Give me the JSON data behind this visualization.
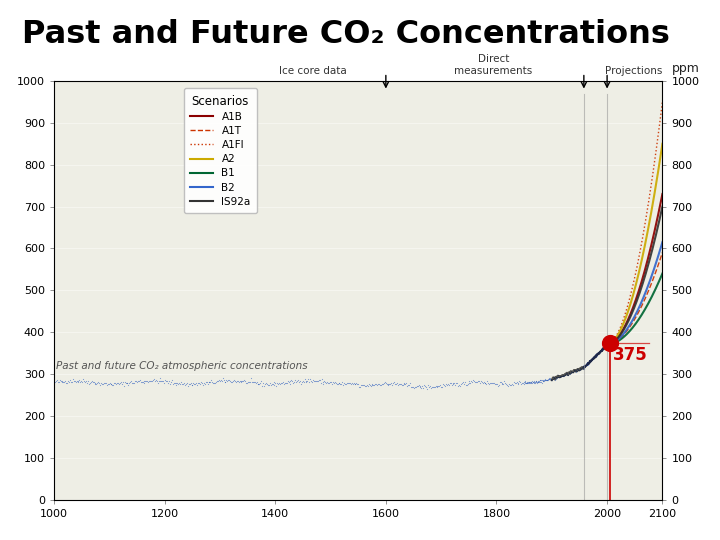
{
  "title": "Past and Future CO₂ Concentrations",
  "subtitle": "Past and future CO₂ atmospheric concentrations",
  "bg_color": "#ffffff",
  "xmin": 1000,
  "xmax": 2100,
  "ymin": 0,
  "ymax": 1000,
  "yticks": [
    0,
    100,
    200,
    300,
    400,
    500,
    600,
    700,
    800,
    900,
    1000
  ],
  "xticks": [
    1000,
    1200,
    1400,
    1600,
    1800,
    2000,
    2100
  ],
  "marker_year": 2005,
  "marker_value": 375,
  "marker_color": "#cc0000",
  "annotation_text": "375",
  "scenarios": {
    "A1B": {
      "color": "#8b0000",
      "linestyle": "-",
      "linewidth": 1.5
    },
    "A1T": {
      "color": "#cc3300",
      "linestyle": "--",
      "linewidth": 1.0
    },
    "A1FI": {
      "color": "#cc3300",
      "linestyle": ":",
      "linewidth": 1.0
    },
    "A2": {
      "color": "#ccaa00",
      "linestyle": "-",
      "linewidth": 1.5
    },
    "B1": {
      "color": "#006633",
      "linestyle": "-",
      "linewidth": 1.5
    },
    "B2": {
      "color": "#3366cc",
      "linestyle": "-",
      "linewidth": 1.5
    },
    "IS92a": {
      "color": "#333333",
      "linestyle": "-",
      "linewidth": 1.5
    }
  },
  "scenario_end_values": {
    "A1B": 730,
    "A1T": 590,
    "A1FI": 950,
    "A2": 850,
    "B1": 540,
    "B2": 615,
    "IS92a": 700
  },
  "ppm_label": "ppm",
  "divider_x1": 1958,
  "divider_x2": 2000
}
